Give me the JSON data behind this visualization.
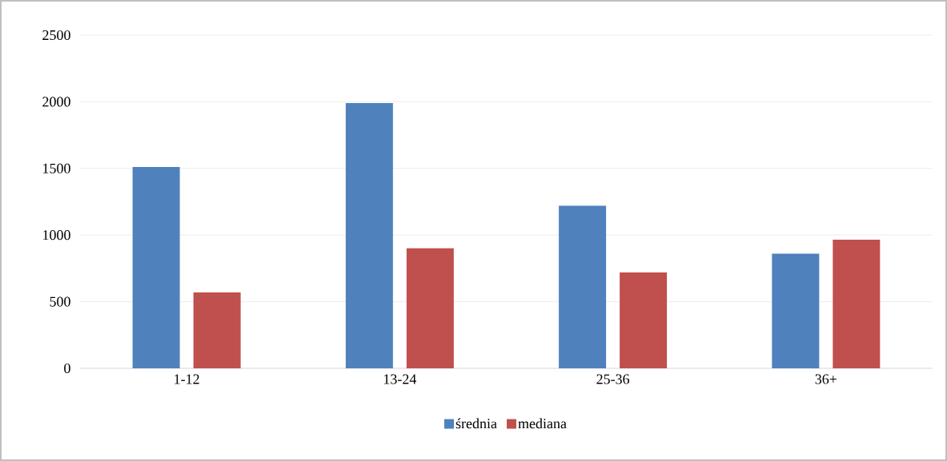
{
  "chart_data": {
    "type": "bar",
    "categories": [
      "1-12",
      "13-24",
      "25-36",
      "36+"
    ],
    "series": [
      {
        "name": "średnia",
        "color": "#4f81bd",
        "values": [
          1510,
          1990,
          1220,
          860
        ]
      },
      {
        "name": "mediana",
        "color": "#c0504d",
        "values": [
          570,
          900,
          720,
          965
        ]
      }
    ],
    "ylim": [
      0,
      2500
    ],
    "yticks": [
      0,
      500,
      1000,
      1500,
      2000,
      2500
    ],
    "grid": "y",
    "legend": "bottom"
  }
}
